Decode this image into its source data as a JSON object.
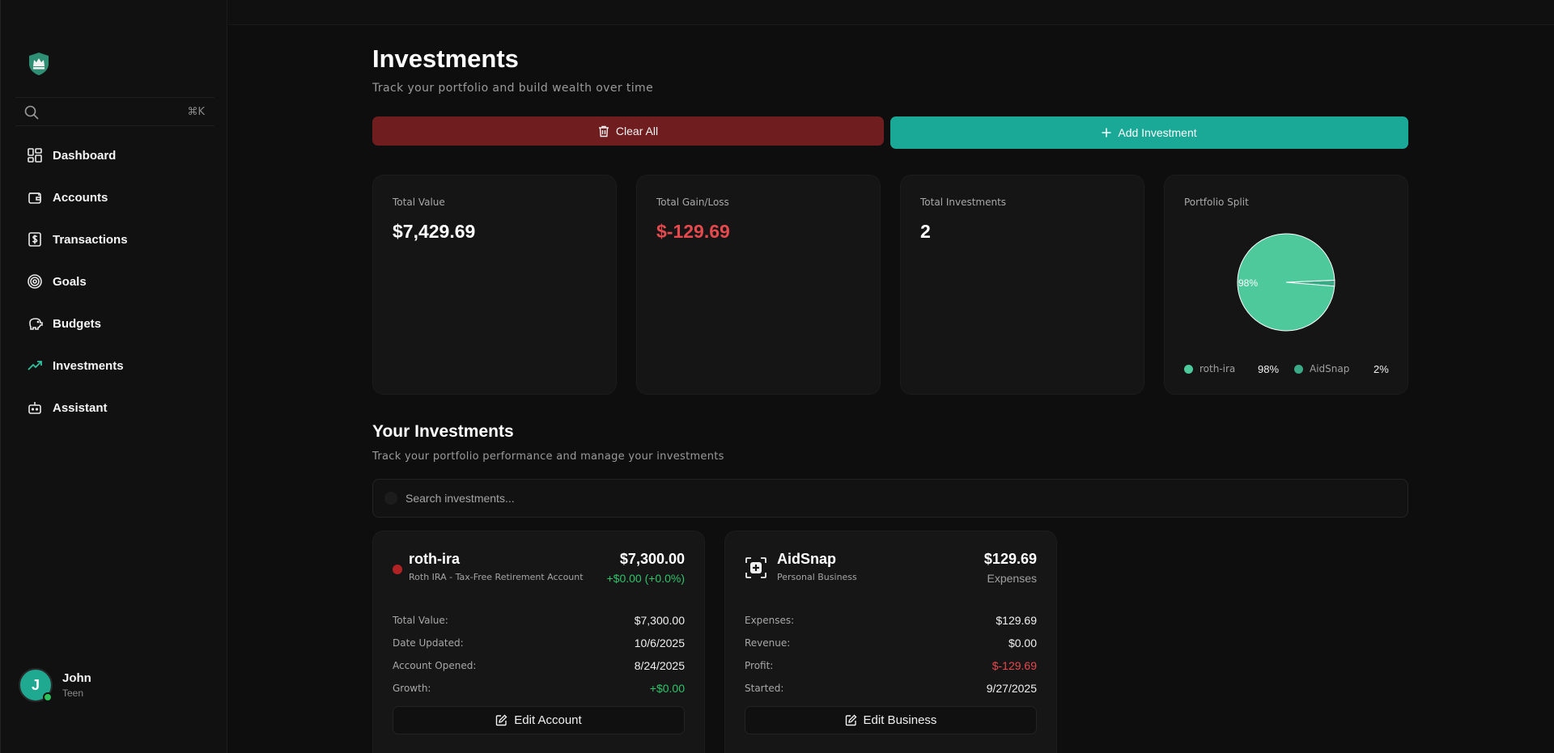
{
  "sidebar": {
    "search_shortcut": "⌘K",
    "items": [
      {
        "label": "Dashboard",
        "icon": "dashboard-icon"
      },
      {
        "label": "Accounts",
        "icon": "wallet-icon"
      },
      {
        "label": "Transactions",
        "icon": "dollar-receipt-icon"
      },
      {
        "label": "Goals",
        "icon": "target-icon"
      },
      {
        "label": "Budgets",
        "icon": "piggy-bank-icon"
      },
      {
        "label": "Investments",
        "icon": "trending-up-icon"
      },
      {
        "label": "Assistant",
        "icon": "bot-icon"
      }
    ],
    "user": {
      "initial": "J",
      "name": "John",
      "role": "Teen"
    }
  },
  "header": {
    "title": "Investments",
    "subtitle": "Track your portfolio and build wealth over time",
    "clear_label": "Clear All",
    "add_label": "Add Investment"
  },
  "stats": {
    "total_value": {
      "label": "Total Value",
      "value": "$7,429.69"
    },
    "total_gain": {
      "label": "Total Gain/Loss",
      "value": "$-129.69"
    },
    "total_investments": {
      "label": "Total Investments",
      "value": "2"
    },
    "portfolio": {
      "label": "Portfolio Split"
    }
  },
  "chart_data": {
    "type": "pie",
    "slice_labels": [
      "98%"
    ],
    "series": [
      {
        "name": "roth-ira",
        "value": 98,
        "display": "98%",
        "color": "#4dc99c"
      },
      {
        "name": "AidSnap",
        "value": 2,
        "display": "2%",
        "color": "#3aa986"
      }
    ]
  },
  "your_investments": {
    "title": "Your Investments",
    "subtitle": "Track your portfolio performance and manage your investments",
    "search_placeholder": "Search investments..."
  },
  "cards": [
    {
      "name": "roth-ira",
      "desc": "Roth IRA - Tax-Free Retirement Account",
      "amount": "$7,300.00",
      "amount_sub": "+$0.00 (+0.0%)",
      "rows": [
        {
          "label": "Total Value:",
          "value": "$7,300.00"
        },
        {
          "label": "Date Updated:",
          "value": "10/6/2025"
        },
        {
          "label": "Account Opened:",
          "value": "8/24/2025"
        },
        {
          "label": "Growth:",
          "value": "+$0.00"
        }
      ],
      "button": "Edit Account"
    },
    {
      "name": "AidSnap",
      "desc": "Personal Business",
      "amount": "$129.69",
      "amount_sub": "Expenses",
      "rows": [
        {
          "label": "Expenses:",
          "value": "$129.69"
        },
        {
          "label": "Revenue:",
          "value": "$0.00"
        },
        {
          "label": "Profit:",
          "value": "$-129.69"
        },
        {
          "label": "Started:",
          "value": "9/27/2025"
        }
      ],
      "button": "Edit Business"
    }
  ]
}
